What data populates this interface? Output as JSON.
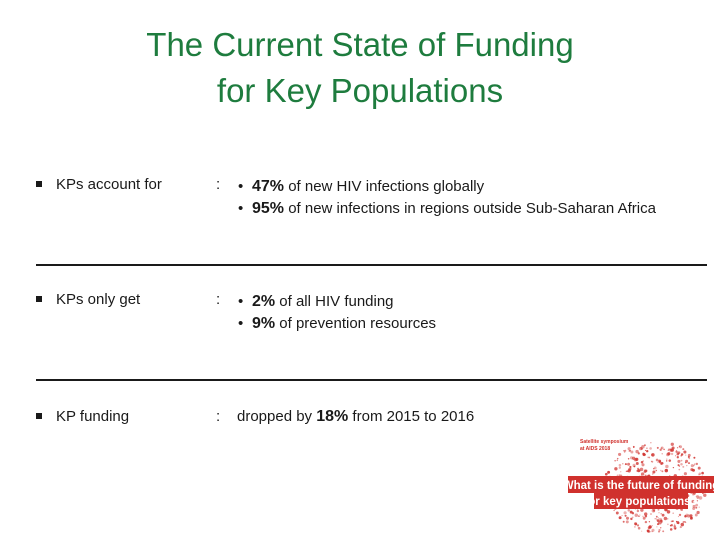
{
  "title": {
    "line1": "The Current State of Funding",
    "line2": "for Key Populations"
  },
  "rows": [
    {
      "label": "KPs account for",
      "colon": ":",
      "items": [
        {
          "bullet": "•",
          "value": "47%",
          "text": " of new HIV infections globally"
        },
        {
          "bullet": "•",
          "value": "95%",
          "text": " of new infections in regions outside Sub-Saharan Africa"
        }
      ]
    },
    {
      "label": "KPs only get",
      "colon": ":",
      "items": [
        {
          "bullet": "•",
          "value": "2%",
          "text": " of all HIV funding"
        },
        {
          "bullet": "•",
          "value": "9%",
          "text": " of prevention resources"
        }
      ]
    },
    {
      "label": "KP funding",
      "colon": ":",
      "prefix": "dropped by ",
      "value": "18%",
      "suffix": " from 2015 to 2016"
    }
  ],
  "logo": {
    "small_line1": "Satellite symposium",
    "small_line2": "at AIDS 2018",
    "line1": "What is the future of funding",
    "line2": "for key populations?"
  },
  "colors": {
    "title": "#1e7c3e",
    "logo_red": "#d0312d"
  }
}
